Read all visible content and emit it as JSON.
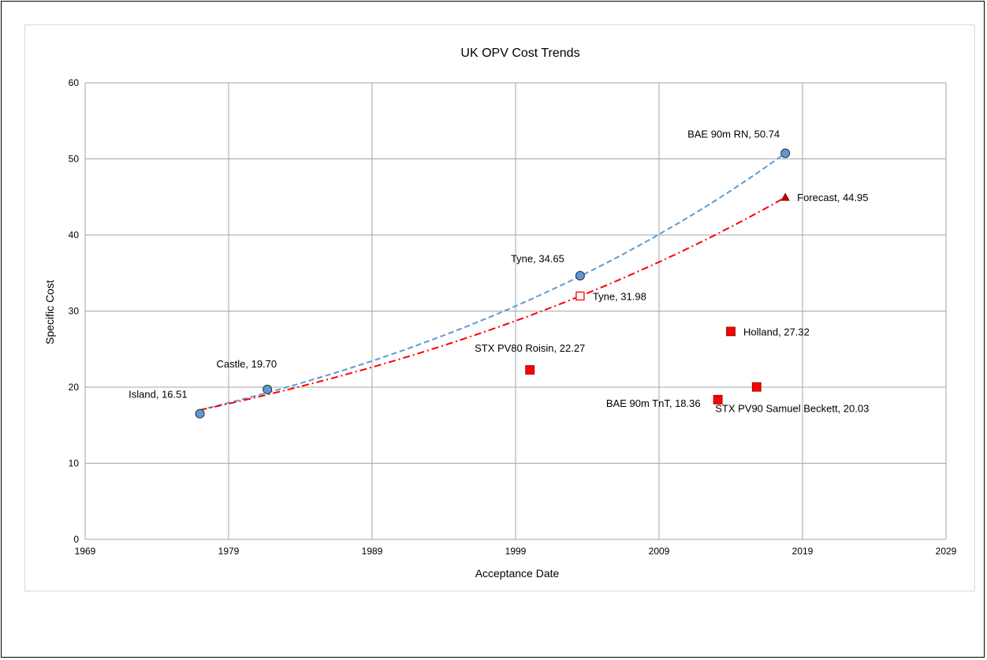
{
  "chart_data": {
    "type": "scatter",
    "title": "UK OPV Cost Trends",
    "xlabel": "Acceptance Date",
    "ylabel": "Specific Cost",
    "xlim": [
      1969,
      2029
    ],
    "ylim": [
      0,
      60
    ],
    "xticks": [
      1969,
      1979,
      1989,
      1999,
      2009,
      2019,
      2029
    ],
    "yticks": [
      0,
      10,
      20,
      30,
      40,
      50,
      60
    ],
    "grid": true,
    "legend": "none",
    "series": [
      {
        "marker": "circle",
        "color": "#5b9bd5",
        "points": [
          {
            "x": 1977.0,
            "y": 16.51,
            "label": "Island, 16.51"
          },
          {
            "x": 1981.7,
            "y": 19.7,
            "label": "Castle, 19.70"
          },
          {
            "x": 2003.5,
            "y": 34.65,
            "label": "Tyne, 34.65"
          },
          {
            "x": 2017.8,
            "y": 50.74,
            "label": "BAE 90m RN, 50.74"
          }
        ]
      },
      {
        "marker": "square-hollow",
        "color": "#ff0000",
        "points": [
          {
            "x": 2003.5,
            "y": 31.98,
            "label": "Tyne, 31.98"
          }
        ]
      },
      {
        "marker": "triangle",
        "color": "#c00000",
        "points": [
          {
            "x": 2017.8,
            "y": 44.95,
            "label": "Forecast, 44.95"
          }
        ]
      },
      {
        "marker": "square",
        "color": "#ff0000",
        "points": [
          {
            "x": 2000.0,
            "y": 22.27,
            "label": "STX PV80 Roisin, 22.27"
          },
          {
            "x": 2014.0,
            "y": 27.32,
            "label": "Holland, 27.32"
          },
          {
            "x": 2013.1,
            "y": 18.36,
            "label": "BAE 90m TnT, 18.36"
          },
          {
            "x": 2015.8,
            "y": 20.03,
            "label": "STX PV90 Samuel Beckett, 20.03"
          }
        ]
      }
    ],
    "trendlines": [
      {
        "style": "dashed",
        "color": "#5b9bd5",
        "fit": "exponential",
        "from": 1977.0,
        "to": 2017.8,
        "start_y": 17.0,
        "end_y": 50.74
      },
      {
        "style": "dash-dot",
        "color": "#ff0000",
        "fit": "exponential",
        "from": 1977.0,
        "to": 2017.8,
        "start_y": 17.0,
        "end_y": 44.95
      }
    ]
  }
}
